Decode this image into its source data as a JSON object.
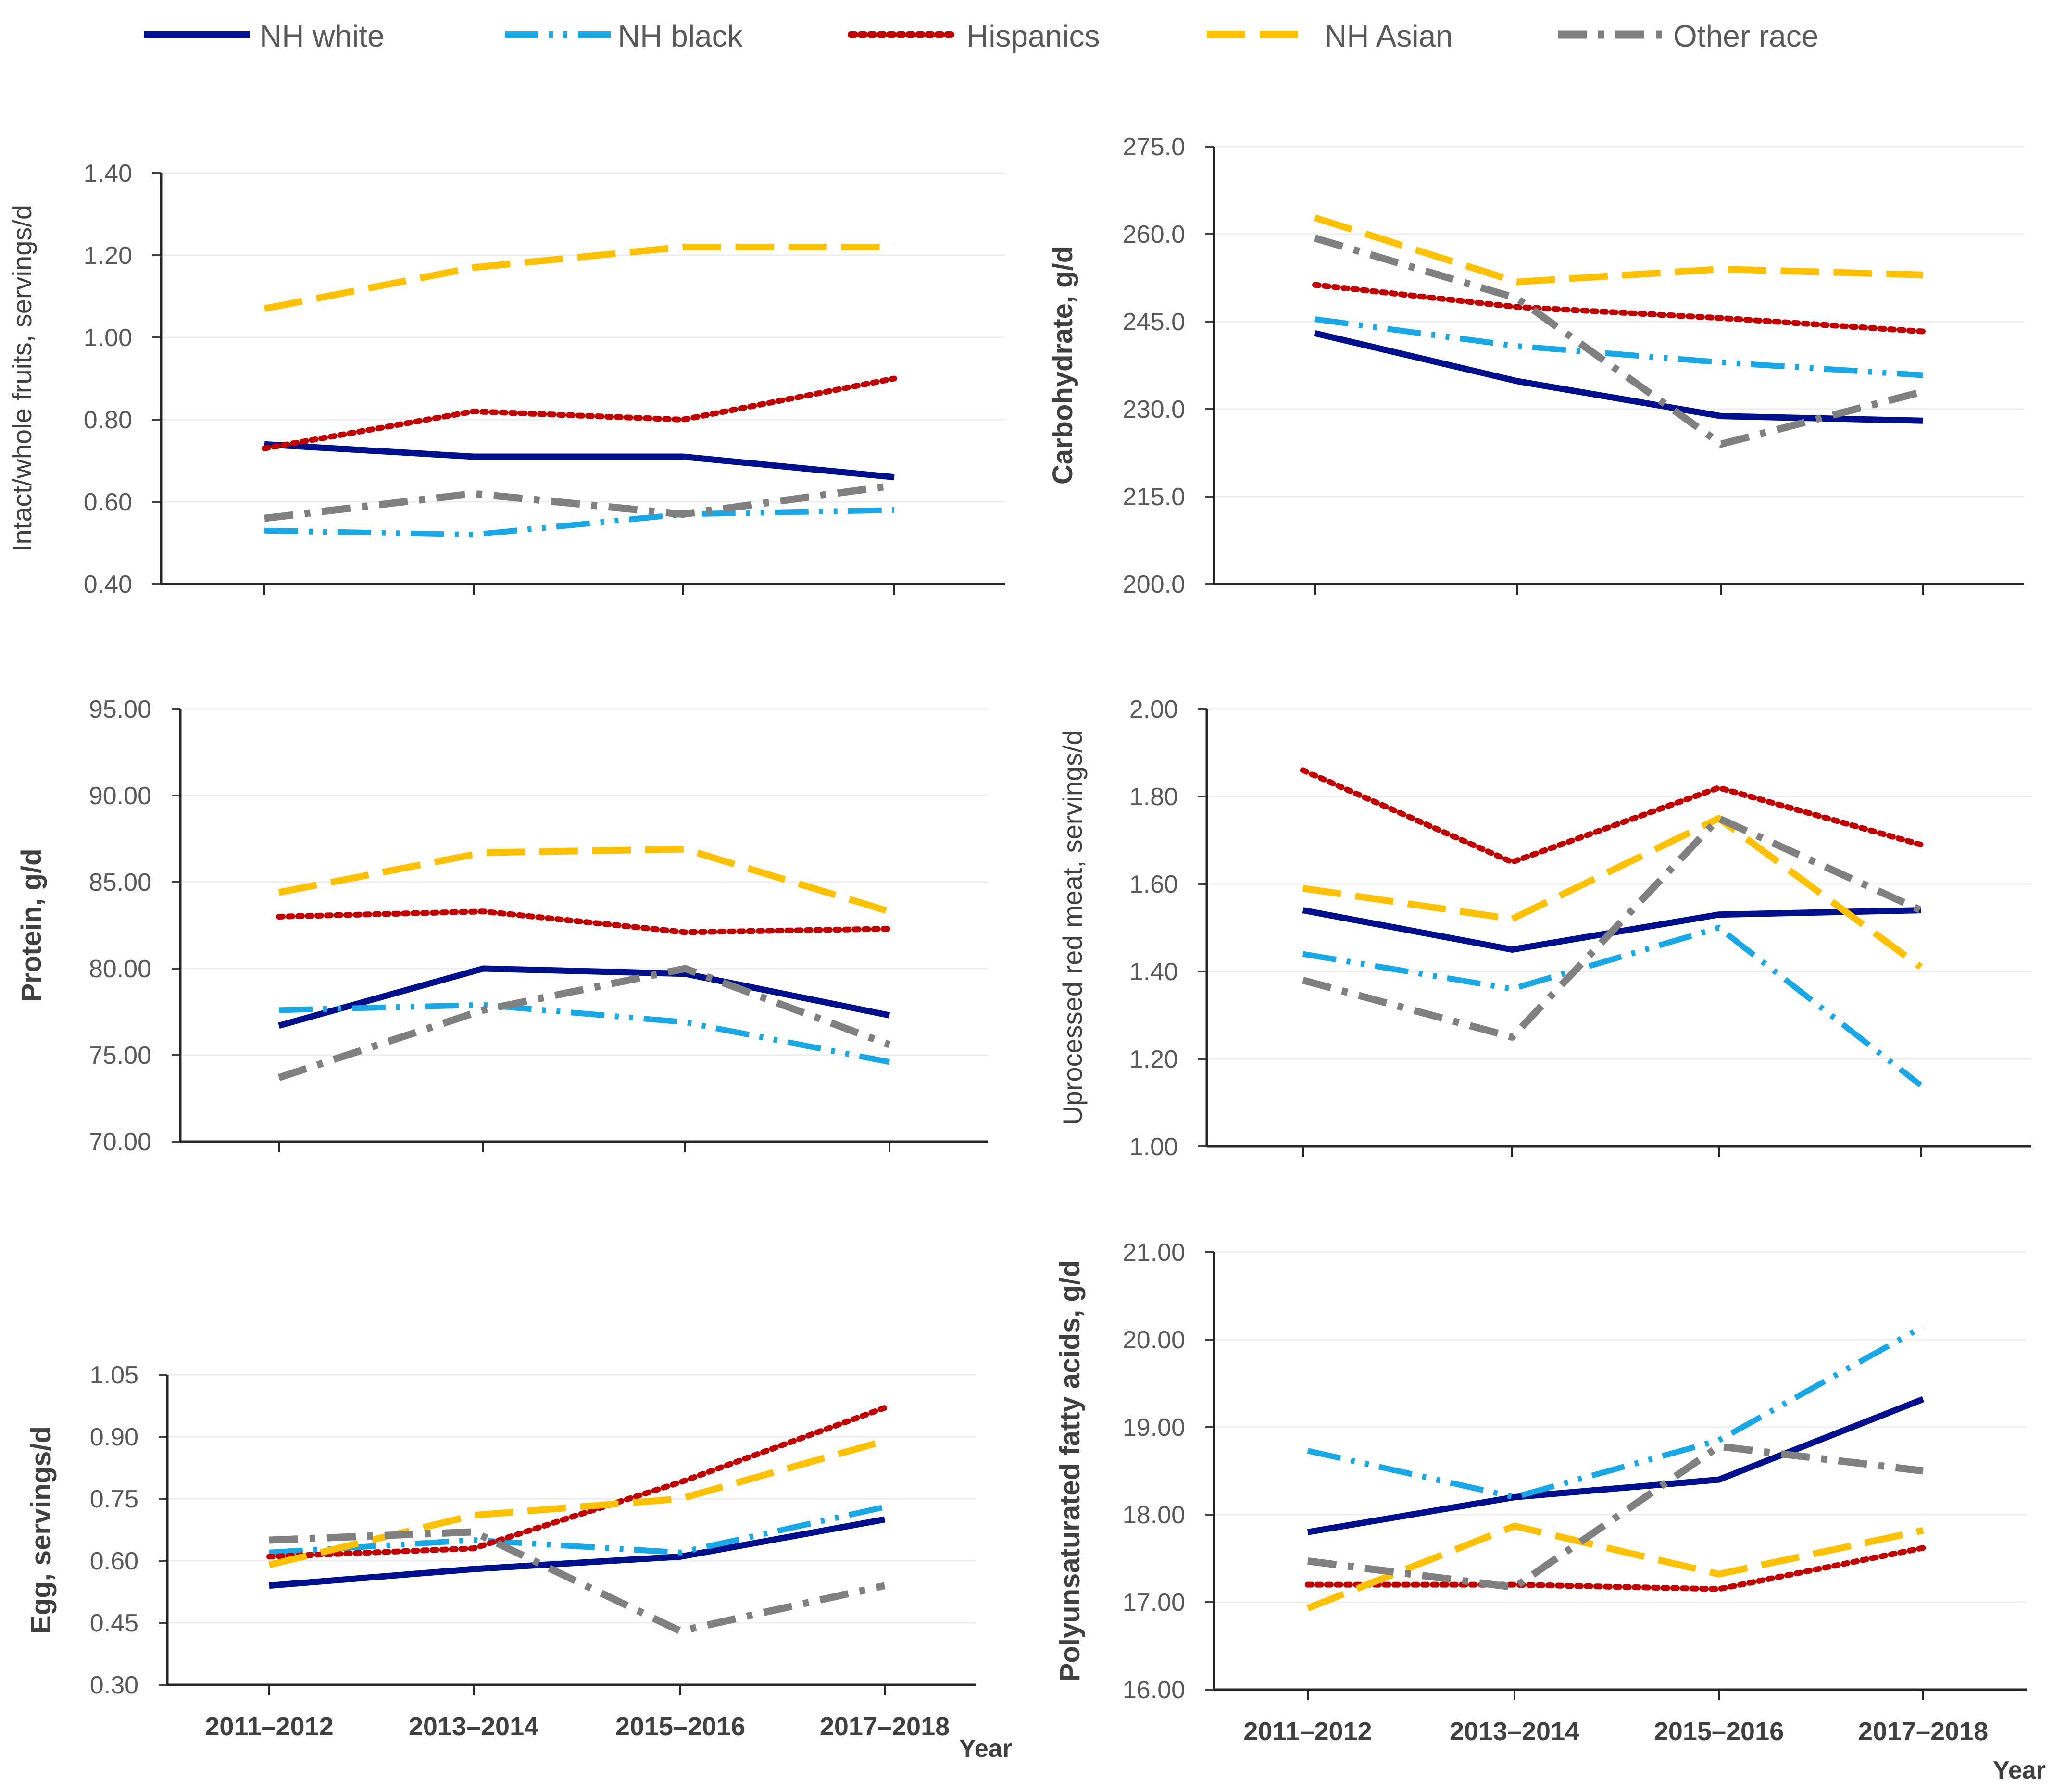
{
  "legend": [
    {
      "name": "NH white",
      "color": "#000f8c",
      "dash": "solid"
    },
    {
      "name": "NH black",
      "color": "#1aa7e6",
      "dash": "dashdotdot"
    },
    {
      "name": "Hispanics",
      "color": "#c00000",
      "dash": "dot"
    },
    {
      "name": "NH Asian",
      "color": "#ffc000",
      "dash": "longdash"
    },
    {
      "name": "Other race",
      "color": "#808080",
      "dash": "dashdot"
    }
  ],
  "chart_data": [
    {
      "type": "line",
      "ylabel": "Intact/whole fruits, servings/d",
      "ylabel_bold": false,
      "categories": [
        "2011–2012",
        "2013–2014",
        "2015–2016",
        "2017–2018"
      ],
      "show_categories": false,
      "ylim": [
        0.4,
        1.4
      ],
      "yticks": [
        "0.40",
        "0.60",
        "0.80",
        "1.00",
        "1.20",
        "1.40"
      ],
      "series": [
        {
          "name": "NH white",
          "values": [
            0.74,
            0.71,
            0.71,
            0.66
          ]
        },
        {
          "name": "NH black",
          "values": [
            0.53,
            0.52,
            0.57,
            0.58
          ]
        },
        {
          "name": "Hispanics",
          "values": [
            0.73,
            0.82,
            0.8,
            0.9
          ]
        },
        {
          "name": "NH Asian",
          "values": [
            1.07,
            1.17,
            1.22,
            1.22
          ]
        },
        {
          "name": "Other race",
          "values": [
            0.56,
            0.62,
            0.57,
            0.64
          ]
        }
      ]
    },
    {
      "type": "line",
      "ylabel": "Carbohydrate, g/d",
      "ylabel_bold": true,
      "categories": [
        "2011–2012",
        "2013–2014",
        "2015–2016",
        "2017–2018"
      ],
      "show_categories": false,
      "ylim": [
        200.0,
        275.0
      ],
      "yticks": [
        "200.0",
        "215.0",
        "230.0",
        "245.0",
        "260.0",
        "275.0"
      ],
      "series": [
        {
          "name": "NH white",
          "values": [
            243.0,
            234.8,
            228.8,
            228.0
          ]
        },
        {
          "name": "NH black",
          "values": [
            245.4,
            240.8,
            238.0,
            235.8
          ]
        },
        {
          "name": "Hispanics",
          "values": [
            251.3,
            247.5,
            245.6,
            243.3
          ]
        },
        {
          "name": "NH Asian",
          "values": [
            262.8,
            251.8,
            254.0,
            253.0
          ]
        },
        {
          "name": "Other race",
          "values": [
            259.3,
            249.0,
            224.0,
            233.0
          ]
        }
      ]
    },
    {
      "type": "line",
      "ylabel": "Protein, g/d",
      "ylabel_bold": true,
      "categories": [
        "2011–2012",
        "2013–2014",
        "2015–2016",
        "2017–2018"
      ],
      "show_categories": false,
      "ylim": [
        70.0,
        95.0
      ],
      "yticks": [
        "70.00",
        "75.00",
        "80.00",
        "85.00",
        "90.00",
        "95.00"
      ],
      "series": [
        {
          "name": "NH white",
          "values": [
            76.7,
            80.0,
            79.7,
            77.3
          ]
        },
        {
          "name": "NH black",
          "values": [
            77.6,
            77.9,
            76.9,
            74.6
          ]
        },
        {
          "name": "Hispanics",
          "values": [
            83.0,
            83.3,
            82.1,
            82.3
          ]
        },
        {
          "name": "NH Asian",
          "values": [
            84.4,
            86.7,
            86.9,
            83.3
          ]
        },
        {
          "name": "Other race",
          "values": [
            73.7,
            77.6,
            80.0,
            75.6
          ]
        }
      ]
    },
    {
      "type": "line",
      "ylabel": "Uprocessed red meat, servings/d",
      "ylabel_bold": false,
      "categories": [
        "2011–2012",
        "2013–2014",
        "2015–2016",
        "2017–2018"
      ],
      "show_categories": false,
      "ylim": [
        1.0,
        2.0
      ],
      "yticks": [
        "1.00",
        "1.20",
        "1.40",
        "1.60",
        "1.80",
        "2.00"
      ],
      "series": [
        {
          "name": "NH white",
          "values": [
            1.54,
            1.45,
            1.53,
            1.54
          ]
        },
        {
          "name": "NH black",
          "values": [
            1.44,
            1.36,
            1.5,
            1.14
          ]
        },
        {
          "name": "Hispanics",
          "values": [
            1.86,
            1.65,
            1.82,
            1.69
          ]
        },
        {
          "name": "NH Asian",
          "values": [
            1.59,
            1.52,
            1.75,
            1.41
          ]
        },
        {
          "name": "Other race",
          "values": [
            1.38,
            1.25,
            1.75,
            1.54
          ]
        }
      ]
    },
    {
      "type": "line",
      "ylabel": "Egg, servings/d",
      "ylabel_bold": true,
      "categories": [
        "2011–2012",
        "2013–2014",
        "2015–2016",
        "2017–2018"
      ],
      "show_categories": true,
      "year_label": "Year",
      "ylim": [
        0.3,
        1.05
      ],
      "yticks": [
        "0.30",
        "0.45",
        "0.60",
        "0.75",
        "0.90",
        "1.05"
      ],
      "series": [
        {
          "name": "NH white",
          "values": [
            0.54,
            0.58,
            0.61,
            0.7
          ]
        },
        {
          "name": "NH black",
          "values": [
            0.62,
            0.65,
            0.62,
            0.73
          ]
        },
        {
          "name": "Hispanics",
          "values": [
            0.61,
            0.63,
            0.79,
            0.97
          ]
        },
        {
          "name": "NH Asian",
          "values": [
            0.59,
            0.71,
            0.75,
            0.89
          ]
        },
        {
          "name": "Other race",
          "values": [
            0.65,
            0.67,
            0.43,
            0.54
          ]
        }
      ]
    },
    {
      "type": "line",
      "ylabel": "Polyunsaturated fatty acids, g/d",
      "ylabel_bold": true,
      "categories": [
        "2011–2012",
        "2013–2014",
        "2015–2016",
        "2017–2018"
      ],
      "show_categories": true,
      "year_label": "Year",
      "ylim": [
        16.0,
        21.0
      ],
      "yticks": [
        "16.00",
        "17.00",
        "18.00",
        "19.00",
        "20.00",
        "21.00"
      ],
      "series": [
        {
          "name": "NH white",
          "values": [
            17.8,
            18.2,
            18.4,
            19.32
          ]
        },
        {
          "name": "NH black",
          "values": [
            18.73,
            18.2,
            18.85,
            20.15
          ]
        },
        {
          "name": "Hispanics",
          "values": [
            17.2,
            17.2,
            17.15,
            17.62
          ]
        },
        {
          "name": "NH Asian",
          "values": [
            16.93,
            17.87,
            17.32,
            17.82
          ]
        },
        {
          "name": "Other race",
          "values": [
            17.47,
            17.17,
            18.78,
            18.5
          ]
        }
      ]
    }
  ]
}
